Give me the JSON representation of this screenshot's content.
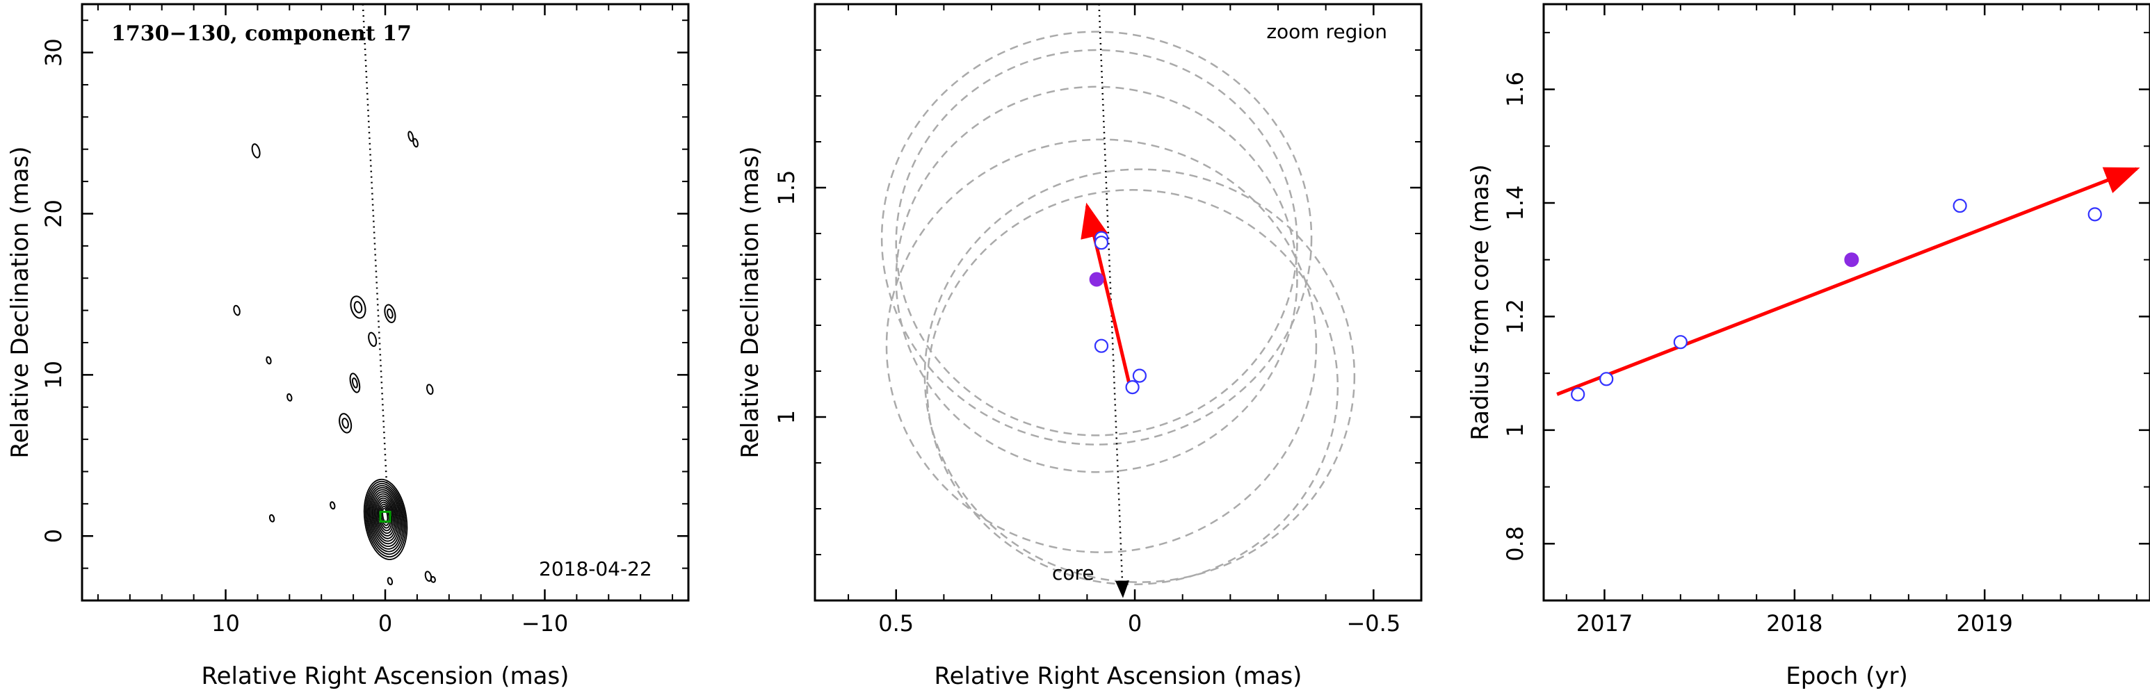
{
  "panels": [
    {
      "title": "1730−130, component 17",
      "date_label": "2018-04-22",
      "xlabel": "Relative Right Ascension (mas)",
      "ylabel": "Relative Declination (mas)"
    },
    {
      "zoom_label": "zoom region",
      "core_label": "core",
      "xlabel": "Relative Right Ascension (mas)",
      "ylabel": "Relative Declination (mas)"
    },
    {
      "xlabel": "Epoch (yr)",
      "ylabel": "Radius from core (mas)"
    }
  ],
  "chart_data": [
    {
      "type": "contour",
      "title": "1730−130, component 17",
      "annotation": "2018-04-22",
      "xlabel": "Relative Right Ascension (mas)",
      "ylabel": "Relative Declination (mas)",
      "xlim": [
        19,
        -19
      ],
      "ylim": [
        -4,
        33
      ],
      "xticks": [
        10,
        0,
        -10
      ],
      "yticks": [
        0,
        10,
        20,
        30
      ],
      "x_inverted": true,
      "jet_axis_line": [
        [
          1.4,
          33
        ],
        [
          -0.1,
          3
        ]
      ],
      "contour_features": [
        {
          "x": 0,
          "y": 1.2,
          "kind": "core, nested contours"
        },
        {
          "x": 1.7,
          "y": 14.2
        },
        {
          "x": -0.3,
          "y": 13.8
        },
        {
          "x": 0.8,
          "y": 12.2
        },
        {
          "x": 1.9,
          "y": 9.5
        },
        {
          "x": 2.5,
          "y": 7.0
        },
        {
          "x": 9.3,
          "y": 14.0
        },
        {
          "x": 8.1,
          "y": 23.9
        },
        {
          "x": -1.6,
          "y": 24.8
        },
        {
          "x": -1.9,
          "y": 24.4
        },
        {
          "x": 7.3,
          "y": 10.9
        },
        {
          "x": 6.0,
          "y": 8.6
        },
        {
          "x": 7.1,
          "y": 1.1
        },
        {
          "x": 3.3,
          "y": 1.9
        },
        {
          "x": -2.8,
          "y": 9.1
        },
        {
          "x": -2.7,
          "y": -2.5
        },
        {
          "x": -3.0,
          "y": -2.7
        },
        {
          "x": -0.3,
          "y": -2.8
        }
      ]
    },
    {
      "type": "scatter",
      "annotations": [
        "zoom region",
        "core"
      ],
      "xlabel": "Relative Right Ascension (mas)",
      "ylabel": "Relative Declination (mas)",
      "xlim": [
        0.67,
        -0.6
      ],
      "ylim": [
        0.6,
        1.9
      ],
      "xticks": [
        0.5,
        0,
        -0.5
      ],
      "yticks": [
        1,
        1.5
      ],
      "x_inverted": true,
      "positions_open": [
        {
          "x": 0.07,
          "y": 1.39
        },
        {
          "x": 0.07,
          "y": 1.38
        },
        {
          "x": 0.07,
          "y": 1.155
        },
        {
          "x": 0.005,
          "y": 1.065
        },
        {
          "x": -0.01,
          "y": 1.09
        }
      ],
      "positions_filled": [
        {
          "x": 0.08,
          "y": 1.3
        }
      ],
      "motion_vector": {
        "from": [
          0.01,
          1.065
        ],
        "to": [
          0.1,
          1.46
        ],
        "color": "#ff0000"
      },
      "jet_axis_line": {
        "from": [
          0.075,
          1.9
        ],
        "to": [
          0.025,
          0.6
        ]
      },
      "beam_circles": [
        {
          "cx": 0.08,
          "cy": 1.3,
          "r": 0.42
        },
        {
          "cx": 0.08,
          "cy": 1.38,
          "r": 0.42
        },
        {
          "cx": 0.08,
          "cy": 1.39,
          "r": 0.45
        },
        {
          "cx": 0.07,
          "cy": 1.155,
          "r": 0.45
        },
        {
          "cx": 0.005,
          "cy": 1.065,
          "r": 0.43
        },
        {
          "cx": -0.01,
          "cy": 1.09,
          "r": 0.45
        }
      ]
    },
    {
      "type": "scatter",
      "xlabel": "Epoch (yr)",
      "ylabel": "Radius from core (mas)",
      "xlim": [
        2016.68,
        2019.87
      ],
      "ylim": [
        0.7,
        1.75
      ],
      "xticks": [
        2017,
        2018,
        2019
      ],
      "yticks": [
        0.8,
        1,
        1.2,
        1.4,
        1.6
      ],
      "points_open": [
        {
          "x": 2016.86,
          "y": 1.063
        },
        {
          "x": 2017.01,
          "y": 1.09
        },
        {
          "x": 2017.4,
          "y": 1.155
        },
        {
          "x": 2018.87,
          "y": 1.395
        },
        {
          "x": 2019.58,
          "y": 1.38
        }
      ],
      "points_filled": [
        {
          "x": 2018.3,
          "y": 1.3
        }
      ],
      "fit_line": {
        "from": [
          2016.75,
          1.063
        ],
        "to": [
          2019.8,
          1.46
        ],
        "color": "#ff0000"
      }
    }
  ]
}
